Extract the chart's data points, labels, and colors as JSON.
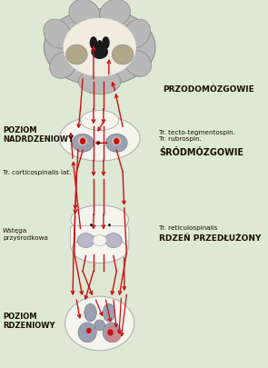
{
  "bg_color": "#dde8d5",
  "labels": {
    "przodomozgowie": "PRZODOMÓZGOWIE",
    "poziom_nadrdzeniowy": "POZIOM\nNADRDZENIOWY",
    "srodmozgowie": "ŚRÓDMÓZGOWIE",
    "tr_cortico": "Tr. corticospinalis lat.",
    "tr_tecto": "Tr. tecto-tegmentospin.\nTr. rubrospin.",
    "rdzen_przedluzony": "RDZEŃ PRZEDŁUŻONY",
    "tr_reticulo": "Tr. reticulospinalis",
    "wstega": "Wstęga\nprzyśrodkowa",
    "poziom_rdzeniowy": "POZIOM\nRDZENIOWY"
  },
  "dark_label": "#1a1000",
  "arrow_color": "#cc1111",
  "brain_gray": "#b8b8b8",
  "brain_inner_gray": "#c8c0a8",
  "section_white": "#f5f5ee",
  "nucleus_gray": "#9aA0b0",
  "dark_nucleus": "#888898"
}
